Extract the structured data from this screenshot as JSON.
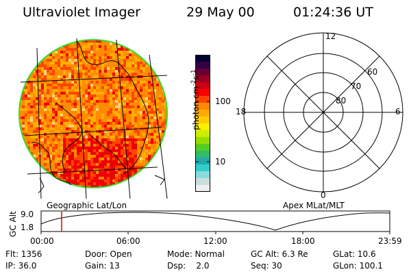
{
  "header": {
    "instrument": "Ultraviolet Imager",
    "date": "29 May 00",
    "time": "01:24:36 UT"
  },
  "image_panel": {
    "label": "Geographic Lat/Lon",
    "limb_color": "#33dd33",
    "fill_colors": [
      "#ff8c00",
      "#ff4500",
      "#ffb000",
      "#ee0000",
      "#ffd27f"
    ]
  },
  "colorbar": {
    "title": "photon cm",
    "unit_exp1": "-2",
    "unit_mid": "s",
    "unit_exp2": "-1",
    "tick_100": "100",
    "tick_10": "10",
    "colors": [
      "#000033",
      "#330044",
      "#660033",
      "#990022",
      "#cc0011",
      "#ff0000",
      "#ff4400",
      "#ff8800",
      "#ffaa00",
      "#ffcc00",
      "#ffee00",
      "#ccee00",
      "#99dd00",
      "#55cc22",
      "#33bb66",
      "#22aaaa",
      "#33cccc",
      "#88dddd",
      "#ccdddd",
      "#eeeeee"
    ]
  },
  "polar_plot": {
    "label": "Apex MLat/MLT",
    "mlt_labels": {
      "top": "12",
      "bottom": "0",
      "left": "18",
      "right": "6"
    },
    "lat_labels": [
      "60",
      "70",
      "80"
    ]
  },
  "altitude_plot": {
    "ylabel": "GC Alt",
    "ytick_high": "9.0",
    "ytick_low": "1.8",
    "xticks": [
      "00:00",
      "06:00",
      "12:00",
      "18:00",
      "23:59"
    ],
    "marker_time": "01:24",
    "marker_color": "#dd0000"
  },
  "status": {
    "flt": "Flt: 1356",
    "ip": "IP: 36.0",
    "door": "Door: Open",
    "gain": "Gain: 13",
    "mode": "Mode: Normal",
    "dsp": "Dsp:    2.0",
    "gcalt": "GC Alt: 6.3 Re",
    "seq": "Seq: 30",
    "glat": "GLat: 10.6",
    "glon": "GLon: 100.1"
  }
}
